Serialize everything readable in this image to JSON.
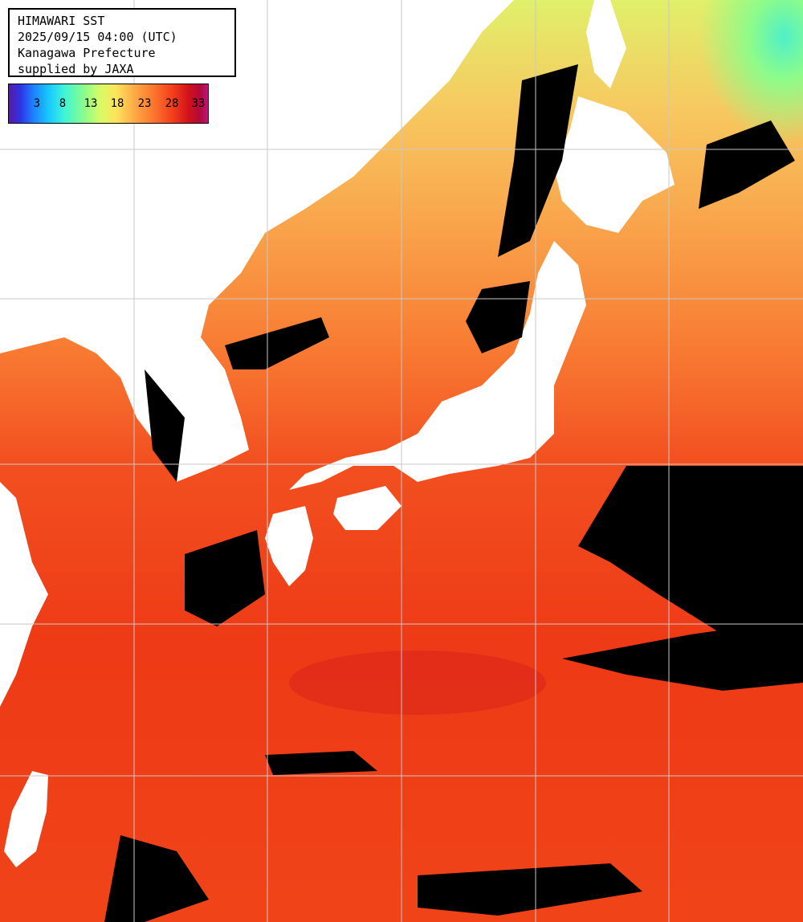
{
  "title_lines": [
    "HIMAWARI SST",
    "2025/09/15 04:00 (UTC)",
    "Kanagawa Prefecture",
    "supplied by JAXA"
  ],
  "colorbar": {
    "ticks": [
      "3",
      "8",
      "13",
      "18",
      "23",
      "28",
      "33"
    ]
  },
  "colors": {
    "land": "#ffffff",
    "cloud": "#000000",
    "grid": "#c8c8c8",
    "cold_north": "#8dfc8a",
    "warm_south": "#f3401c"
  }
}
